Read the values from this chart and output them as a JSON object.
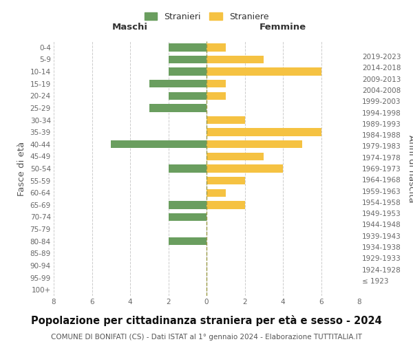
{
  "age_groups": [
    "100+",
    "95-99",
    "90-94",
    "85-89",
    "80-84",
    "75-79",
    "70-74",
    "65-69",
    "60-64",
    "55-59",
    "50-54",
    "45-49",
    "40-44",
    "35-39",
    "30-34",
    "25-29",
    "20-24",
    "15-19",
    "10-14",
    "5-9",
    "0-4"
  ],
  "birth_years": [
    "≤ 1923",
    "1924-1928",
    "1929-1933",
    "1934-1938",
    "1939-1943",
    "1944-1948",
    "1949-1953",
    "1954-1958",
    "1959-1963",
    "1964-1968",
    "1969-1973",
    "1974-1978",
    "1979-1983",
    "1984-1988",
    "1989-1993",
    "1994-1998",
    "1999-2003",
    "2004-2008",
    "2009-2013",
    "2014-2018",
    "2019-2023"
  ],
  "males": [
    0,
    0,
    0,
    0,
    2,
    0,
    2,
    2,
    0,
    0,
    2,
    0,
    5,
    0,
    0,
    3,
    2,
    3,
    2,
    2,
    2
  ],
  "females": [
    0,
    0,
    0,
    0,
    0,
    0,
    0,
    2,
    1,
    2,
    4,
    3,
    5,
    6,
    2,
    0,
    1,
    1,
    6,
    3,
    1
  ],
  "male_color": "#6a9e5f",
  "female_color": "#f5c242",
  "center_line_color": "#999944",
  "grid_color": "#cccccc",
  "title": "Popolazione per cittadinanza straniera per età e sesso - 2024",
  "subtitle": "COMUNE DI BONIFATI (CS) - Dati ISTAT al 1° gennaio 2024 - Elaborazione TUTTITALIA.IT",
  "xlabel_left": "Maschi",
  "xlabel_right": "Femmine",
  "ylabel_left": "Fasce di età",
  "ylabel_right": "Anni di nascita",
  "legend_male": "Stranieri",
  "legend_female": "Straniere",
  "xlim": 8,
  "background_color": "#ffffff",
  "title_fontsize": 10.5,
  "subtitle_fontsize": 7.5,
  "tick_fontsize": 7.5,
  "label_fontsize": 9.5
}
